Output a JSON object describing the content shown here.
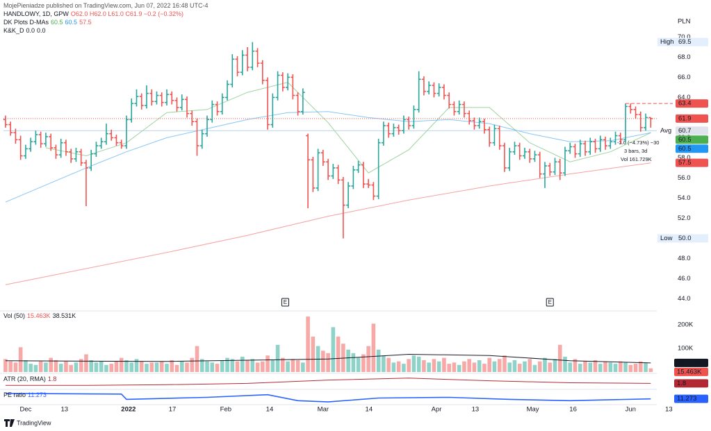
{
  "header": "MojePieniadze published on TradingView.com, Jun 07, 2022 16:48 UTC-4",
  "brand": "TradingView",
  "chart_data": {
    "type": "ohlc",
    "symbol": "HANDLOWY, 1D, GPW",
    "legend_ohlc": "O62.0 H62.0 L61.0 C61.9 −0.2 (−0.32%)",
    "currency": "PLN",
    "up_color": "#26a69a",
    "down_color": "#ef5350",
    "grid": false,
    "xlim": [
      -0.4,
      129.2
    ],
    "xticks": [
      {
        "value": 4,
        "label": "Dec"
      },
      {
        "value": 11.7,
        "label": "13"
      },
      {
        "value": 24.4,
        "label": "2022"
      },
      {
        "value": 33.1,
        "label": "17"
      },
      {
        "value": 43.7,
        "label": "Feb"
      },
      {
        "value": 52.4,
        "label": "14"
      },
      {
        "value": 63,
        "label": "Mar"
      },
      {
        "value": 72.1,
        "label": "14"
      },
      {
        "value": 85.5,
        "label": "Apr"
      },
      {
        "value": 93.2,
        "label": "13"
      },
      {
        "value": 104.6,
        "label": "May"
      },
      {
        "value": 112.6,
        "label": "16"
      },
      {
        "value": 124,
        "label": "Jun"
      },
      {
        "value": 131.6,
        "label": "13"
      }
    ],
    "ylim": [
      43.0,
      72.3
    ],
    "yticks": [
      {
        "value": 44,
        "label": "44.0"
      },
      {
        "value": 46,
        "label": "46.0"
      },
      {
        "value": 48,
        "label": "48.0"
      },
      {
        "value": 50,
        "label": "50.0"
      },
      {
        "value": 52,
        "label": "52.0"
      },
      {
        "value": 54,
        "label": "54.0"
      },
      {
        "value": 56,
        "label": "56.0"
      },
      {
        "value": 58,
        "label": "58.0"
      },
      {
        "value": 60,
        "label": "60.0"
      },
      {
        "value": 62,
        "label": "62.0"
      },
      {
        "value": 64,
        "label": "64.0"
      },
      {
        "value": 66,
        "label": "66.0"
      },
      {
        "value": 68,
        "label": "68.0"
      },
      {
        "value": 70,
        "label": "70.0"
      }
    ],
    "ohlc": [
      [
        61.8,
        62.2,
        61.0,
        61.3
      ],
      [
        61.3,
        61.6,
        60.2,
        60.5
      ],
      [
        60.5,
        60.9,
        59.4,
        59.8
      ],
      [
        59.8,
        60.2,
        57.8,
        58.2
      ],
      [
        58.2,
        59.3,
        57.9,
        58.9
      ],
      [
        58.9,
        60.0,
        58.6,
        59.6
      ],
      [
        59.6,
        60.7,
        59.3,
        60.3
      ],
      [
        60.3,
        60.6,
        59.0,
        59.4
      ],
      [
        59.4,
        60.5,
        59.1,
        60.1
      ],
      [
        60.1,
        60.4,
        58.7,
        59.0
      ],
      [
        59.0,
        59.3,
        57.9,
        58.3
      ],
      [
        58.3,
        59.9,
        58.0,
        59.5
      ],
      [
        59.5,
        59.8,
        58.2,
        58.6
      ],
      [
        58.6,
        58.9,
        57.5,
        57.9
      ],
      [
        57.9,
        59.0,
        57.6,
        58.6
      ],
      [
        58.6,
        58.9,
        57.2,
        57.5
      ],
      [
        57.5,
        57.8,
        53.2,
        57.0
      ],
      [
        57.0,
        58.8,
        56.7,
        58.4
      ],
      [
        58.4,
        59.6,
        58.1,
        59.2
      ],
      [
        59.2,
        60.0,
        58.9,
        59.6
      ],
      [
        59.6,
        61.4,
        59.3,
        60.4
      ],
      [
        60.4,
        60.8,
        59.7,
        60.0
      ],
      [
        60.0,
        60.3,
        59.2,
        59.5
      ],
      [
        59.5,
        59.8,
        58.9,
        59.2
      ],
      [
        59.2,
        62.2,
        58.9,
        61.8
      ],
      [
        61.8,
        63.9,
        61.5,
        63.4
      ],
      [
        63.4,
        64.8,
        63.1,
        64.1
      ],
      [
        64.1,
        64.4,
        62.8,
        63.2
      ],
      [
        63.2,
        65.2,
        62.9,
        64.4
      ],
      [
        64.4,
        64.8,
        63.2,
        63.6
      ],
      [
        63.6,
        64.6,
        63.3,
        64.2
      ],
      [
        64.2,
        64.5,
        63.1,
        63.5
      ],
      [
        63.5,
        64.8,
        63.2,
        64.3
      ],
      [
        64.3,
        64.6,
        63.3,
        63.7
      ],
      [
        63.7,
        64.0,
        62.6,
        63.0
      ],
      [
        63.0,
        64.3,
        62.7,
        63.8
      ],
      [
        63.8,
        64.1,
        62.0,
        62.4
      ],
      [
        62.4,
        62.7,
        61.2,
        61.6
      ],
      [
        61.6,
        61.9,
        58.2,
        59.2
      ],
      [
        59.2,
        60.8,
        58.9,
        60.4
      ],
      [
        60.4,
        62.2,
        60.1,
        61.8
      ],
      [
        61.8,
        63.7,
        61.5,
        63.3
      ],
      [
        63.3,
        63.6,
        62.2,
        62.6
      ],
      [
        62.6,
        64.4,
        62.3,
        64.0
      ],
      [
        64.0,
        65.7,
        63.7,
        65.3
      ],
      [
        65.3,
        68.3,
        65.0,
        67.8
      ],
      [
        67.8,
        68.1,
        66.1,
        66.5
      ],
      [
        66.5,
        68.7,
        66.2,
        68.2
      ],
      [
        68.2,
        69.0,
        66.6,
        67.0
      ],
      [
        67.0,
        69.5,
        66.7,
        68.6
      ],
      [
        68.6,
        68.9,
        67.0,
        67.4
      ],
      [
        67.4,
        67.7,
        65.3,
        65.7
      ],
      [
        65.7,
        66.0,
        60.8,
        61.3
      ],
      [
        61.3,
        64.4,
        61.0,
        64.0
      ],
      [
        64.0,
        66.6,
        63.7,
        66.2
      ],
      [
        66.2,
        66.5,
        64.6,
        65.0
      ],
      [
        65.0,
        66.4,
        64.7,
        66.0
      ],
      [
        66.0,
        66.3,
        63.8,
        64.2
      ],
      [
        64.2,
        64.5,
        62.2,
        62.6
      ],
      [
        62.6,
        64.9,
        62.3,
        64.5
      ],
      [
        60.2,
        60.4,
        53.0,
        57.8
      ],
      [
        57.8,
        58.1,
        54.6,
        55.0
      ],
      [
        55.0,
        58.9,
        54.7,
        58.5
      ],
      [
        58.5,
        58.8,
        57.2,
        57.6
      ],
      [
        57.6,
        57.9,
        55.8,
        56.2
      ],
      [
        56.2,
        57.4,
        55.9,
        57.0
      ],
      [
        57.0,
        57.3,
        55.4,
        55.8
      ],
      [
        55.8,
        56.1,
        50.0,
        53.3
      ],
      [
        53.3,
        55.6,
        53.0,
        55.2
      ],
      [
        55.2,
        57.2,
        54.9,
        56.8
      ],
      [
        56.8,
        57.7,
        56.5,
        57.3
      ],
      [
        57.3,
        57.6,
        55.0,
        55.4
      ],
      [
        55.4,
        55.9,
        55.0,
        55.3
      ],
      [
        55.3,
        55.6,
        53.8,
        54.2
      ],
      [
        54.2,
        59.9,
        53.9,
        59.5
      ],
      [
        59.5,
        61.6,
        59.2,
        61.2
      ],
      [
        61.2,
        61.5,
        60.0,
        60.4
      ],
      [
        60.4,
        61.4,
        60.1,
        61.0
      ],
      [
        61.0,
        61.3,
        60.3,
        60.7
      ],
      [
        60.7,
        62.2,
        60.4,
        61.8
      ],
      [
        61.8,
        62.1,
        60.8,
        61.2
      ],
      [
        61.2,
        63.2,
        60.9,
        62.8
      ],
      [
        62.8,
        66.6,
        62.5,
        65.8
      ],
      [
        65.8,
        66.1,
        64.2,
        64.6
      ],
      [
        64.6,
        65.6,
        64.3,
        65.2
      ],
      [
        65.2,
        65.5,
        64.0,
        64.4
      ],
      [
        64.4,
        65.4,
        64.1,
        65.0
      ],
      [
        65.0,
        65.3,
        63.8,
        64.2
      ],
      [
        64.2,
        64.5,
        62.9,
        63.3
      ],
      [
        63.3,
        63.6,
        62.2,
        62.6
      ],
      [
        62.6,
        63.7,
        62.3,
        63.3
      ],
      [
        63.3,
        63.6,
        62.0,
        62.4
      ],
      [
        62.4,
        62.7,
        61.3,
        61.7
      ],
      [
        61.7,
        62.0,
        60.8,
        61.2
      ],
      [
        61.2,
        62.0,
        60.9,
        61.6
      ],
      [
        61.6,
        61.9,
        60.4,
        60.8
      ],
      [
        60.8,
        61.1,
        59.1,
        59.5
      ],
      [
        59.5,
        61.3,
        59.2,
        60.9
      ],
      [
        60.9,
        61.2,
        58.8,
        59.2
      ],
      [
        59.2,
        59.5,
        56.6,
        57.0
      ],
      [
        57.0,
        59.0,
        56.7,
        58.6
      ],
      [
        58.6,
        59.6,
        58.3,
        59.2
      ],
      [
        59.2,
        59.5,
        57.8,
        58.2
      ],
      [
        58.2,
        59.0,
        57.9,
        58.6
      ],
      [
        58.6,
        58.9,
        57.5,
        57.9
      ],
      [
        57.9,
        58.7,
        57.6,
        58.3
      ],
      [
        58.3,
        58.6,
        56.0,
        56.4
      ],
      [
        56.4,
        57.6,
        55.0,
        57.2
      ],
      [
        57.2,
        57.5,
        56.2,
        56.6
      ],
      [
        56.6,
        58.0,
        56.3,
        57.6
      ],
      [
        57.6,
        57.9,
        55.8,
        56.5
      ],
      [
        56.5,
        59.1,
        56.2,
        58.7
      ],
      [
        58.7,
        59.5,
        58.4,
        59.1
      ],
      [
        59.1,
        59.4,
        58.0,
        58.4
      ],
      [
        58.4,
        59.8,
        58.1,
        59.4
      ],
      [
        59.4,
        59.7,
        58.2,
        58.6
      ],
      [
        58.6,
        60.0,
        58.3,
        59.6
      ],
      [
        59.6,
        59.9,
        58.5,
        58.9
      ],
      [
        58.9,
        60.2,
        58.6,
        59.8
      ],
      [
        59.8,
        60.1,
        58.8,
        59.2
      ],
      [
        59.2,
        60.0,
        58.9,
        59.6
      ],
      [
        59.6,
        60.6,
        59.3,
        60.2
      ],
      [
        60.2,
        60.5,
        59.4,
        59.8
      ],
      [
        59.8,
        63.4,
        59.5,
        63.1
      ],
      [
        63.1,
        63.4,
        62.4,
        62.8
      ],
      [
        62.8,
        63.1,
        61.9,
        62.3
      ],
      [
        62.3,
        62.6,
        60.6,
        61.0
      ],
      [
        61.0,
        62.4,
        60.7,
        62.0
      ],
      [
        62.0,
        62.0,
        61.0,
        61.9
      ]
    ],
    "ma_title": "DK Plots D-MAs",
    "mas": [
      {
        "color": "#4caf50",
        "last_label": "60.5",
        "x": [
          8,
          16,
          24,
          32,
          40,
          48,
          56,
          64,
          72,
          80,
          88,
          96,
          104,
          112,
          120,
          128
        ],
        "values": [
          59.0,
          58.2,
          59.5,
          62.5,
          62.8,
          64.5,
          65.5,
          61.5,
          56.5,
          58.8,
          63.0,
          63.0,
          59.5,
          57.6,
          58.6,
          60.5
        ]
      },
      {
        "color": "#2196f3",
        "last_label": "60.5",
        "x": [
          0,
          8,
          16,
          24,
          32,
          40,
          48,
          56,
          64,
          72,
          80,
          88,
          96,
          104,
          112,
          120,
          128
        ],
        "values": [
          53.6,
          55.3,
          57.0,
          58.6,
          60.0,
          60.9,
          61.8,
          62.5,
          62.6,
          62.0,
          61.6,
          61.8,
          61.4,
          60.4,
          59.6,
          59.7,
          60.5
        ]
      },
      {
        "color": "#ef5350",
        "last_label": "57.5",
        "x": [
          0,
          16,
          32,
          48,
          64,
          80,
          96,
          112,
          128
        ],
        "values": [
          45.4,
          47.0,
          48.6,
          50.3,
          52.2,
          53.8,
          55.2,
          56.4,
          57.5
        ]
      }
    ],
    "indicator2": {
      "name": "K&K_D",
      "values": [
        "0.0",
        "0.0"
      ]
    },
    "badges": [
      {
        "value": 63.4,
        "label": "63.4",
        "color": "#ef5350",
        "line": "dashed"
      },
      {
        "value": 61.9,
        "label": "61.9",
        "color": "#ef5350",
        "line": "dotted"
      },
      {
        "title": "Avg",
        "value": 60.7,
        "label": "60.7",
        "color": "#e0e3eb",
        "line": "solid"
      },
      {
        "value": 60.5,
        "label": "60.5",
        "color": "#4caf50"
      },
      {
        "value": 60.5,
        "label": "60.5",
        "color": "#2196f3"
      },
      {
        "value": 57.5,
        "label": "57.5",
        "color": "#ef5350"
      }
    ],
    "high": {
      "title": "High",
      "value": 69.5,
      "label": "69.5"
    },
    "low": {
      "title": "Low",
      "value": 50.0,
      "label": "50.0"
    },
    "annotations": [
      "-3.0 (−4.73%) −30",
      "3 bars, 3d",
      "Vol 161.729K"
    ],
    "earnings": [
      {
        "x": 55.5,
        "label": "E"
      },
      {
        "x": 108,
        "label": "E"
      }
    ],
    "volume": {
      "title": "Vol (50)",
      "legend": [
        "15.463K",
        "38.531K"
      ],
      "up_color": "#8fd3c8",
      "down_color": "#f7a9a7",
      "ylim": [
        0,
        247
      ],
      "yticks": [
        {
          "value": 100,
          "label": "100K"
        },
        {
          "value": 200,
          "label": "200K"
        }
      ],
      "values": [
        55,
        45,
        40,
        105,
        50,
        35,
        30,
        45,
        40,
        60,
        50,
        35,
        45,
        30,
        40,
        55,
        75,
        50,
        40,
        45,
        30,
        35,
        45,
        60,
        50,
        40,
        55,
        45,
        35,
        40,
        40,
        45,
        35,
        50,
        30,
        45,
        40,
        60,
        110,
        55,
        45,
        40,
        35,
        50,
        60,
        55,
        45,
        65,
        50,
        55,
        40,
        45,
        70,
        50,
        115,
        60,
        45,
        55,
        50,
        40,
        235,
        150,
        110,
        90,
        80,
        190,
        150,
        120,
        95,
        80,
        60,
        75,
        110,
        205,
        95,
        70,
        60,
        40,
        45,
        35,
        55,
        70,
        65,
        50,
        40,
        55,
        45,
        60,
        35,
        40,
        30,
        45,
        55,
        40,
        50,
        35,
        60,
        45,
        55,
        70,
        40,
        50,
        35,
        45,
        55,
        30,
        45,
        60,
        40,
        55,
        115,
        65,
        40,
        55,
        35,
        45,
        40,
        50,
        35,
        45,
        40,
        35,
        45,
        40,
        30,
        35,
        45,
        40,
        15.463
      ],
      "ma": {
        "color": "#131722",
        "x": [
          0,
          16,
          32,
          48,
          64,
          80,
          96,
          112,
          128
        ],
        "values": [
          48,
          46,
          45,
          50,
          55,
          75,
          70,
          48,
          38.531
        ]
      },
      "badges": [
        {
          "value": 38.531,
          "label": "38.531K",
          "color": "#131722"
        },
        {
          "value": 15.463,
          "label": "15.463K",
          "color": "#ef5350"
        }
      ]
    },
    "atr": {
      "title": "ATR (20, RMA)",
      "legend": "1.8",
      "color": "#b22833",
      "ylim": [
        1,
        3
      ],
      "x": [
        0,
        16,
        32,
        48,
        64,
        80,
        96,
        112,
        128
      ],
      "values": [
        1.5,
        1.5,
        1.6,
        1.8,
        2.3,
        2.6,
        2.2,
        1.9,
        1.8
      ],
      "badge": {
        "value": 1.8,
        "label": "1.8"
      }
    },
    "pe": {
      "title": "PE ratio",
      "legend": "11.273",
      "color": "#2962ff",
      "ylim": [
        10.5,
        12.5
      ],
      "x": [
        0,
        23,
        24,
        40,
        52,
        58,
        64,
        74,
        88,
        100,
        112,
        128
      ],
      "values": [
        12.1,
        12.0,
        11.2,
        11.5,
        11.9,
        11.0,
        10.8,
        11.4,
        11.5,
        11.2,
        11.0,
        11.273
      ],
      "badge": {
        "value": 11.273,
        "label": "11.273"
      }
    }
  }
}
